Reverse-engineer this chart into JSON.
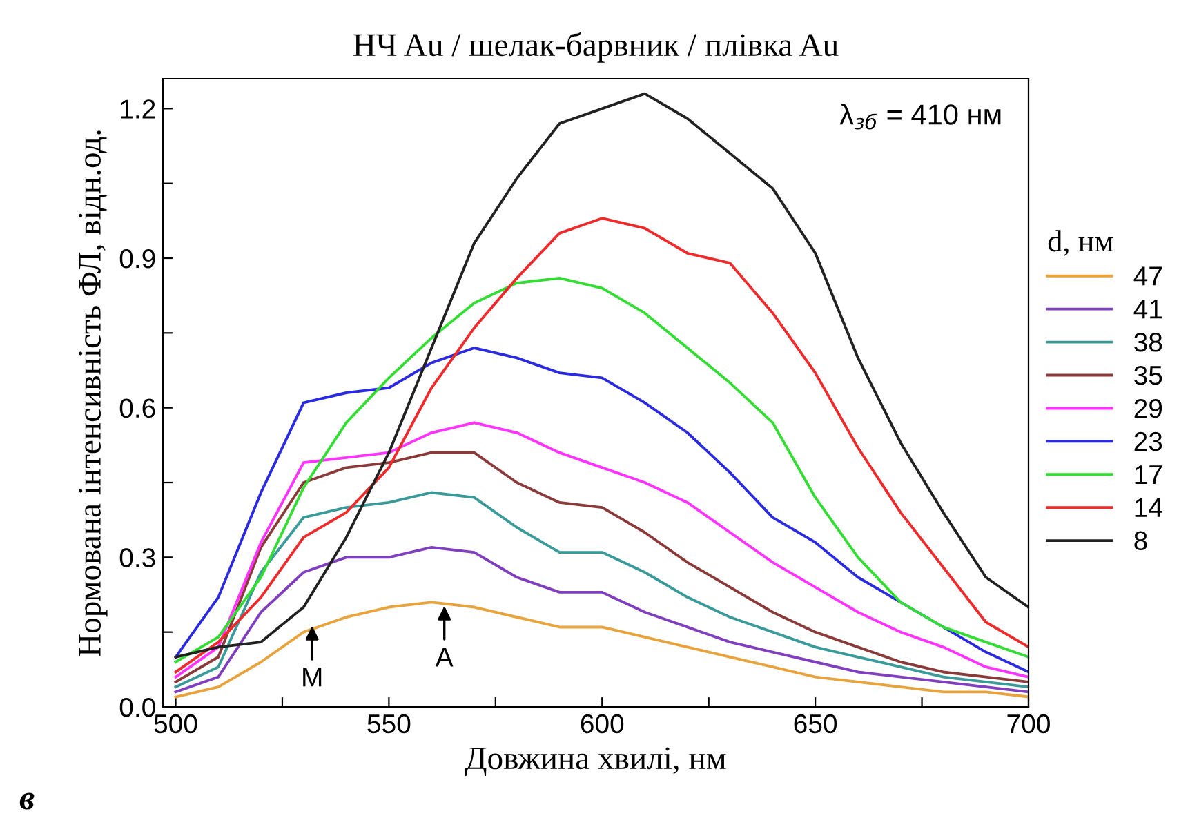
{
  "chart_data": {
    "type": "line",
    "title": "НЧ Au / шелак-барвник / плівка Au",
    "xlabel": "Довжина хвилі, нм",
    "ylabel": "Нормована інтенсивність ФЛ, відн.од.",
    "legend_title": "d, нм",
    "legend": "right",
    "grid": false,
    "marker": "none",
    "line_style": "solid",
    "xlim": [
      497,
      700
    ],
    "ylim": [
      0,
      1.26
    ],
    "xticks": [
      500,
      {
        "value": 525,
        "label": null
      },
      550,
      {
        "value": 575,
        "label": null
      },
      600,
      {
        "value": 625,
        "label": null
      },
      650,
      {
        "value": 675,
        "label": null
      },
      700
    ],
    "yticks": [
      {
        "value": 0,
        "label": "0.0"
      },
      {
        "value": 0.15,
        "label": null
      },
      {
        "value": 0.3,
        "label": "0.3"
      },
      {
        "value": 0.45,
        "label": null
      },
      {
        "value": 0.6,
        "label": "0.6"
      },
      {
        "value": 0.75,
        "label": null
      },
      {
        "value": 0.9,
        "label": "0.9"
      },
      {
        "value": 1.05,
        "label": null
      },
      {
        "value": 1.2,
        "label": "1.2"
      }
    ],
    "x": [
      500,
      510,
      520,
      530,
      540,
      550,
      560,
      570,
      580,
      590,
      600,
      610,
      620,
      630,
      640,
      650,
      660,
      670,
      680,
      690,
      700
    ],
    "series": [
      {
        "name": "47",
        "color": "#e8a33c",
        "values": [
          0.02,
          0.04,
          0.09,
          0.15,
          0.18,
          0.2,
          0.21,
          0.2,
          0.18,
          0.16,
          0.16,
          0.14,
          0.12,
          0.1,
          0.08,
          0.06,
          0.05,
          0.04,
          0.03,
          0.03,
          0.02
        ]
      },
      {
        "name": "41",
        "color": "#7f3fbf",
        "values": [
          0.03,
          0.06,
          0.19,
          0.27,
          0.3,
          0.3,
          0.32,
          0.31,
          0.26,
          0.23,
          0.23,
          0.19,
          0.16,
          0.13,
          0.11,
          0.09,
          0.07,
          0.06,
          0.05,
          0.04,
          0.03
        ]
      },
      {
        "name": "38",
        "color": "#3a9a9a",
        "values": [
          0.04,
          0.08,
          0.27,
          0.38,
          0.4,
          0.41,
          0.43,
          0.42,
          0.36,
          0.31,
          0.31,
          0.27,
          0.22,
          0.18,
          0.15,
          0.12,
          0.1,
          0.08,
          0.06,
          0.05,
          0.04
        ]
      },
      {
        "name": "35",
        "color": "#8b3a3a",
        "values": [
          0.05,
          0.1,
          0.32,
          0.45,
          0.48,
          0.49,
          0.51,
          0.51,
          0.45,
          0.41,
          0.4,
          0.35,
          0.29,
          0.24,
          0.19,
          0.15,
          0.12,
          0.09,
          0.07,
          0.06,
          0.05
        ]
      },
      {
        "name": "29",
        "color": "#ff33ff",
        "values": [
          0.06,
          0.12,
          0.33,
          0.49,
          0.5,
          0.51,
          0.55,
          0.57,
          0.55,
          0.51,
          0.48,
          0.45,
          0.41,
          0.35,
          0.29,
          0.24,
          0.19,
          0.15,
          0.12,
          0.08,
          0.06
        ]
      },
      {
        "name": "23",
        "color": "#2a2ae0",
        "values": [
          0.1,
          0.22,
          0.43,
          0.61,
          0.63,
          0.64,
          0.69,
          0.72,
          0.7,
          0.67,
          0.66,
          0.61,
          0.55,
          0.47,
          0.38,
          0.33,
          0.26,
          0.21,
          0.16,
          0.11,
          0.07
        ]
      },
      {
        "name": "17",
        "color": "#33dd33",
        "values": [
          0.09,
          0.14,
          0.26,
          0.44,
          0.57,
          0.66,
          0.74,
          0.81,
          0.85,
          0.86,
          0.84,
          0.79,
          0.72,
          0.65,
          0.57,
          0.42,
          0.3,
          0.21,
          0.16,
          0.13,
          0.1
        ]
      },
      {
        "name": "14",
        "color": "#ee2a2a",
        "values": [
          0.07,
          0.13,
          0.22,
          0.34,
          0.39,
          0.48,
          0.64,
          0.76,
          0.86,
          0.95,
          0.98,
          0.96,
          0.91,
          0.89,
          0.79,
          0.67,
          0.52,
          0.39,
          0.28,
          0.17,
          0.12
        ]
      },
      {
        "name": "8",
        "color": "#222222",
        "values": [
          0.1,
          0.12,
          0.13,
          0.2,
          0.34,
          0.51,
          0.72,
          0.93,
          1.06,
          1.17,
          1.2,
          1.23,
          1.18,
          1.11,
          1.04,
          0.91,
          0.7,
          0.53,
          0.39,
          0.26,
          0.2
        ]
      }
    ],
    "annotations": [
      "λ$_{зб}$ = 410 нм",
      "в",
      {
        "text": "M",
        "x": 532,
        "y": 0.17
      },
      {
        "text": "A",
        "x": 563,
        "y": 0.21
      }
    ]
  }
}
